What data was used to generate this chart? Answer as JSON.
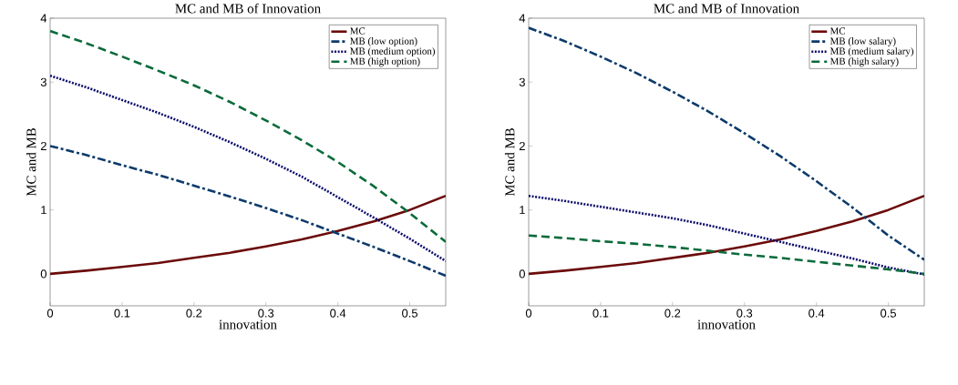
{
  "chart_data": [
    {
      "type": "line",
      "title": "MC and MB of Innovation",
      "xlabel": "innovation",
      "ylabel": "MC and MB",
      "x": [
        0,
        0.05,
        0.1,
        0.15,
        0.2,
        0.25,
        0.3,
        0.35,
        0.4,
        0.45,
        0.5,
        0.55
      ],
      "series": [
        {
          "name": "MC",
          "color": "#6b0a0a",
          "line_style": "solid",
          "values": [
            0,
            0.05,
            0.11,
            0.17,
            0.25,
            0.33,
            0.43,
            0.54,
            0.67,
            0.82,
            1.0,
            1.22
          ]
        },
        {
          "name": "MB (low option)",
          "color": "#0b3a6b",
          "line_style": "dashdot",
          "values": [
            2.0,
            1.86,
            1.7,
            1.55,
            1.38,
            1.21,
            1.03,
            0.84,
            0.63,
            0.42,
            0.2,
            -0.03
          ]
        },
        {
          "name": "MB (medium option)",
          "color": "#0a0a6b",
          "line_style": "dotted",
          "values": [
            3.1,
            2.92,
            2.72,
            2.52,
            2.3,
            2.06,
            1.8,
            1.52,
            1.2,
            0.88,
            0.55,
            0.2
          ]
        },
        {
          "name": "MB (high option)",
          "color": "#0a6b3a",
          "line_style": "dashed",
          "values": [
            3.8,
            3.61,
            3.4,
            3.18,
            2.95,
            2.69,
            2.4,
            2.09,
            1.75,
            1.37,
            0.95,
            0.5
          ]
        }
      ],
      "xlim": [
        0,
        0.55
      ],
      "ylim": [
        -0.5,
        4
      ],
      "xticks": [
        0,
        0.1,
        0.2,
        0.3,
        0.4,
        0.5
      ],
      "yticks": [
        0,
        1,
        2,
        3,
        4
      ],
      "legend": "top right"
    },
    {
      "type": "line",
      "title": "MC and MB of Innovation",
      "xlabel": "innovation",
      "ylabel": "MC and MB",
      "x": [
        0,
        0.05,
        0.1,
        0.15,
        0.2,
        0.25,
        0.3,
        0.35,
        0.4,
        0.45,
        0.5,
        0.55
      ],
      "series": [
        {
          "name": "MC",
          "color": "#6b0a0a",
          "line_style": "solid",
          "values": [
            0,
            0.05,
            0.11,
            0.17,
            0.25,
            0.33,
            0.43,
            0.54,
            0.67,
            0.82,
            1.0,
            1.22
          ]
        },
        {
          "name": "MB (low salary)",
          "color": "#0b3a6b",
          "line_style": "dashdot",
          "values": [
            3.85,
            3.64,
            3.4,
            3.14,
            2.85,
            2.54,
            2.2,
            1.84,
            1.45,
            1.04,
            0.6,
            0.22
          ]
        },
        {
          "name": "MB (medium salary)",
          "color": "#0a0a6b",
          "line_style": "dotted",
          "values": [
            1.22,
            1.14,
            1.05,
            0.96,
            0.87,
            0.76,
            0.63,
            0.5,
            0.37,
            0.24,
            0.1,
            -0.01
          ]
        },
        {
          "name": "MB (high salary)",
          "color": "#0a6b3a",
          "line_style": "dashed",
          "values": [
            0.6,
            0.56,
            0.51,
            0.47,
            0.42,
            0.36,
            0.3,
            0.25,
            0.19,
            0.13,
            0.07,
            0.0
          ]
        }
      ],
      "xlim": [
        0,
        0.55
      ],
      "ylim": [
        -0.5,
        4
      ],
      "xticks": [
        0,
        0.1,
        0.2,
        0.3,
        0.4,
        0.5
      ],
      "yticks": [
        0,
        1,
        2,
        3,
        4
      ],
      "legend": "top right"
    }
  ]
}
